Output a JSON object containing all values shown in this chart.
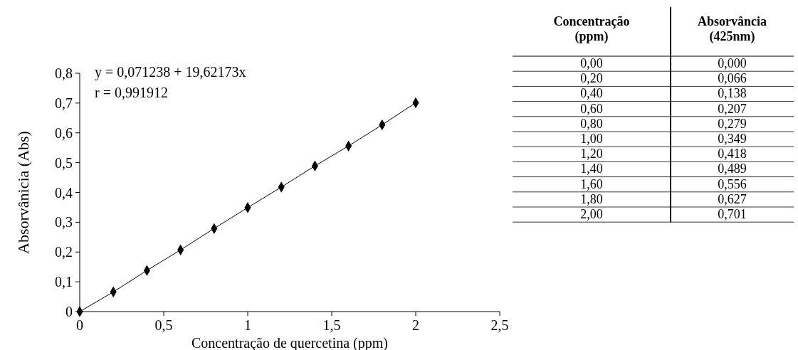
{
  "chart_data": [
    {
      "type": "line",
      "xlabel": "Concentração de quercetina (ppm)",
      "ylabel": "Absorvânicia (Abs)",
      "x": [
        0,
        0.2,
        0.4,
        0.6,
        0.8,
        1.0,
        1.2,
        1.4,
        1.6,
        1.8,
        2.0
      ],
      "series": [
        {
          "color": "#000000",
          "values": [
            0,
            0.066,
            0.138,
            0.207,
            0.279,
            0.349,
            0.418,
            0.489,
            0.556,
            0.627,
            0.701
          ]
        }
      ],
      "xlim": [
        0,
        2.5
      ],
      "xticks": [
        0,
        {
          "value": 0.5,
          "label": "0,5"
        },
        1,
        {
          "value": 1.5,
          "label": "1,5"
        },
        2,
        {
          "value": 2.5,
          "label": "2,5"
        }
      ],
      "ylim": [
        0,
        0.8
      ],
      "yticks": [
        0,
        {
          "value": 0.1,
          "label": "0,1"
        },
        {
          "value": 0.2,
          "label": "0,2"
        },
        {
          "value": 0.3,
          "label": "0,3"
        },
        {
          "value": 0.4,
          "label": "0,4"
        },
        {
          "value": 0.5,
          "label": "0,5"
        },
        {
          "value": 0.6,
          "label": "0,6"
        },
        {
          "value": 0.7,
          "label": "0,7"
        },
        {
          "value": 0.8,
          "label": "0,8"
        }
      ],
      "marker": "diamond",
      "line_style": "solid",
      "annotations": [
        "y = 0,071238 + 19,62173x",
        "r = 0,991912"
      ]
    },
    {
      "type": "other",
      "annotations": [
        "Concentração (ppm)",
        "Absorvância (425nm)",
        "0,00",
        "0,000",
        "0,20",
        "0,066",
        "0,40",
        "0,138",
        "0,60",
        "0,207",
        "0,80",
        "0,279",
        "1,00",
        "0,349",
        "1,20",
        "0,418",
        "1,40",
        "0,489",
        "1,60",
        "0,556",
        "1,80",
        "0,627",
        "2,00",
        "0,701"
      ]
    }
  ]
}
